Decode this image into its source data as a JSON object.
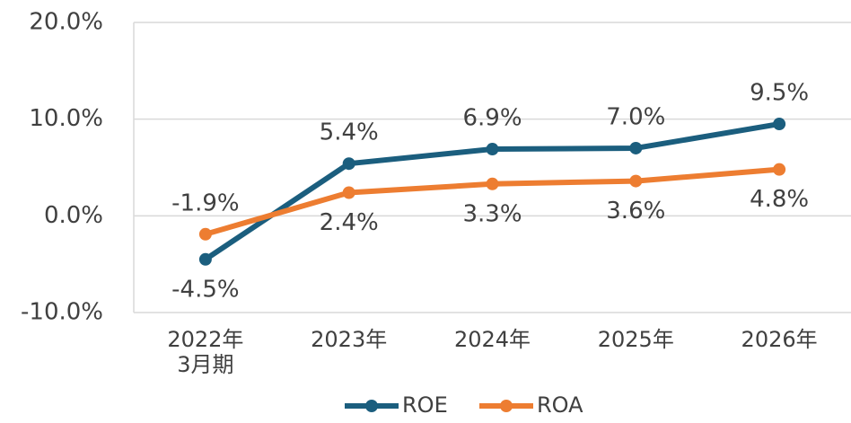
{
  "chart_data": {
    "type": "line",
    "categories": [
      "2022年\n3月期",
      "2023年",
      "2024年",
      "2025年",
      "2026年"
    ],
    "series": [
      {
        "name": "ROE",
        "color": "#1b5e7e",
        "values": [
          -4.5,
          5.4,
          6.9,
          7.0,
          9.5
        ],
        "value_labels": [
          "-4.5%",
          "5.4%",
          "6.9%",
          "7.0%",
          "9.5%"
        ]
      },
      {
        "name": "ROA",
        "color": "#ed7d31",
        "values": [
          -1.9,
          2.4,
          3.3,
          3.6,
          4.8
        ],
        "value_labels": [
          "-1.9%",
          "2.4%",
          "3.3%",
          "3.6%",
          "4.8%"
        ]
      }
    ],
    "ylim": [
      -10,
      20
    ],
    "yticks": [
      {
        "value": -10,
        "label": "-10.0%"
      },
      {
        "value": 0,
        "label": "0.0%"
      },
      {
        "value": 10,
        "label": "10.0%"
      },
      {
        "value": 20,
        "label": "20.0%"
      }
    ],
    "grid": true,
    "legend": "bottom"
  }
}
